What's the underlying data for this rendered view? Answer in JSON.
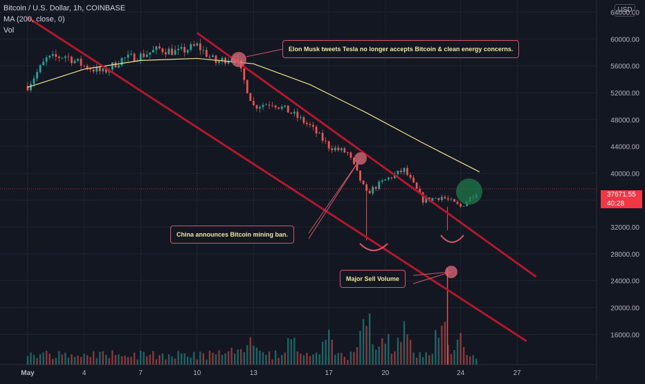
{
  "header": {
    "symbol": "Bitcoin / U.S. Dollar, 1h, COINBASE",
    "indicator": "MA (200, close, 0)",
    "volume_label": "Vol"
  },
  "currency_label": "USD",
  "price_badge": {
    "price": "37671.55",
    "countdown": "40:28",
    "value": 37671.55
  },
  "colors": {
    "background": "#131722",
    "up": "#26a69a",
    "down": "#ef5350",
    "ma": "#f0e68c",
    "channel": "#b2182b",
    "annotation": "#d7566c"
  },
  "annotations": {
    "elon": "Elon Musk tweets Tesla no longer accepts Bitcoin & clean energy concerns.",
    "china": "China announces Bitcoin mining ban.",
    "volume": "Major Sell Volume"
  },
  "chart_data": {
    "type": "candlestick",
    "interval": "1h",
    "y_ticks": [
      "64000.00",
      "60000.00",
      "56000.00",
      "52000.00",
      "48000.00",
      "44000.00",
      "40000.00",
      "36000.00",
      "32000.00",
      "28000.00",
      "24000.00",
      "20000.00",
      "16000.00"
    ],
    "ylim": [
      11500,
      65800
    ],
    "x_ticks": [
      "May",
      "4",
      "7",
      "10",
      "13",
      "17",
      "20",
      "24",
      "27"
    ],
    "price_path": [
      {
        "x": "May 1",
        "y": 53000
      },
      {
        "x": "May 2",
        "y": 57000
      },
      {
        "x": "May 3",
        "y": 57500
      },
      {
        "x": "May 4",
        "y": 56000
      },
      {
        "x": "May 5",
        "y": 55000
      },
      {
        "x": "May 6",
        "y": 57000
      },
      {
        "x": "May 7",
        "y": 57500
      },
      {
        "x": "May 8",
        "y": 58500
      },
      {
        "x": "May 9",
        "y": 58000
      },
      {
        "x": "May 10",
        "y": 59000
      },
      {
        "x": "May 11",
        "y": 56500
      },
      {
        "x": "May 12",
        "y": 57500
      },
      {
        "x": "May 13",
        "y": 50000
      },
      {
        "x": "May 14",
        "y": 50500
      },
      {
        "x": "May 15",
        "y": 49000
      },
      {
        "x": "May 16",
        "y": 47000
      },
      {
        "x": "May 17",
        "y": 44000
      },
      {
        "x": "May 18",
        "y": 43000
      },
      {
        "x": "May 19",
        "y": 37000
      },
      {
        "x": "May 20",
        "y": 39000
      },
      {
        "x": "May 21",
        "y": 40500
      },
      {
        "x": "May 22",
        "y": 36000
      },
      {
        "x": "May 23",
        "y": 36500
      },
      {
        "x": "May 24",
        "y": 35000
      },
      {
        "x": "May 25",
        "y": 37671.55
      }
    ],
    "ma200": [
      {
        "x": "May 1",
        "y": 52800
      },
      {
        "x": "May 4",
        "y": 55500
      },
      {
        "x": "May 7",
        "y": 56800
      },
      {
        "x": "May 10",
        "y": 57100
      },
      {
        "x": "May 13",
        "y": 56300
      },
      {
        "x": "May 16",
        "y": 53200
      },
      {
        "x": "May 19",
        "y": 49000
      },
      {
        "x": "May 22",
        "y": 44500
      },
      {
        "x": "May 25",
        "y": 40200
      }
    ],
    "channel": {
      "upper": [
        {
          "x": "May 10",
          "y": 60900
        },
        {
          "x": "May 28",
          "y": 24600
        }
      ],
      "lower": [
        {
          "x": "May 1",
          "y": 63200
        },
        {
          "x": "May 27.5",
          "y": 15000
        }
      ]
    },
    "volume_peaks": [
      {
        "x": "May 12",
        "rel": 0.4
      },
      {
        "x": "May 13",
        "rel": 0.55
      },
      {
        "x": "May 15",
        "rel": 0.5
      },
      {
        "x": "May 17",
        "rel": 0.6
      },
      {
        "x": "May 19",
        "rel": 0.95
      },
      {
        "x": "May 20",
        "rel": 0.65
      },
      {
        "x": "May 21",
        "rel": 0.75
      },
      {
        "x": "May 23",
        "rel": 1.0
      },
      {
        "x": "May 24",
        "rel": 0.55
      }
    ]
  }
}
